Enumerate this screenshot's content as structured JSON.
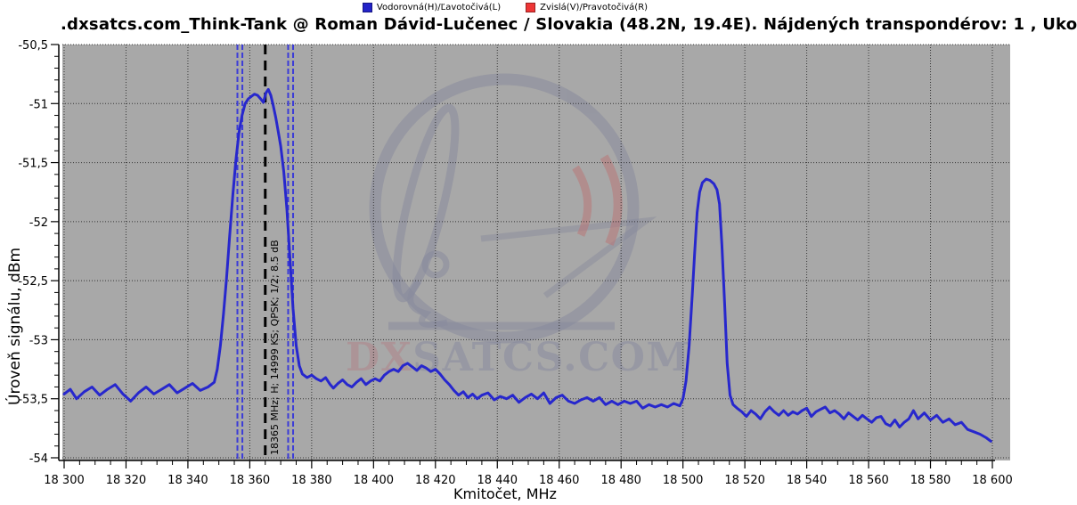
{
  "title": ".dxsatcs.com_Think-Tank @ Roman Dávid-Lučenec / Slovakia (48.2N, 19.4E). Nájdených transpondérov: 1 , Uko",
  "legend": {
    "items": [
      {
        "label": "Vodorovná(H)/Ľavotočivá(L)",
        "color": "#2323c8"
      },
      {
        "label": "Zvislá(V)/Pravotočivá(R)",
        "color": "#ee3636"
      }
    ]
  },
  "watermark": {
    "text": "DXSATCS.COM",
    "text_dx": "DX",
    "text_rest": "SATCS.COM",
    "dx_color": "rgba(186,88,98,0.55)",
    "rest_color": "rgba(100,105,148,0.55)"
  },
  "chart_data": {
    "type": "line",
    "title": ".dxsatcs.com_Think-Tank @ Roman Dávid-Lučenec / Slovakia (48.2N, 19.4E). Nájdených transpondérov: 1 , Uko",
    "xlabel": "Kmitočet, MHz",
    "ylabel": "Úroveň signálu, dBm",
    "xlim": [
      18300,
      18600
    ],
    "ylim": [
      -54,
      -50.5
    ],
    "x_major_step": 20,
    "x_minor_step": 5,
    "y_major_step": 0.5,
    "y_minor_step": 0.1,
    "grid": true,
    "plot_bg": "#a8a8a8",
    "grid_color": "#1a1a1a",
    "x_tick_values": [
      18300,
      18320,
      18340,
      18360,
      18380,
      18400,
      18420,
      18440,
      18460,
      18480,
      18500,
      18520,
      18540,
      18560,
      18580,
      18600
    ],
    "x_tick_labels": [
      "18 300",
      "18 320",
      "18 340",
      "18 360",
      "18 380",
      "18 400",
      "18 420",
      "18 440",
      "18 460",
      "18 480",
      "18 500",
      "18 520",
      "18 540",
      "18 560",
      "18 580",
      "18 600"
    ],
    "y_tick_values": [
      -50.5,
      -51,
      -51.5,
      -52,
      -52.5,
      -53,
      -53.5,
      -54
    ],
    "y_tick_labels": [
      "-50,5",
      "-51",
      "-51,5",
      "-52",
      "-52,5",
      "-53",
      "-53,5",
      "-54"
    ],
    "markers": {
      "center_line": {
        "x": 18365,
        "color": "#000000",
        "style": "dashed"
      },
      "band_edges": [
        18356,
        18357.6,
        18372.4,
        18374
      ],
      "band_color": "#3c3cd8",
      "annotation": "18365 MHz; H; 14999 KS; QPSK; 1/2; 8.5 dB"
    },
    "series": [
      {
        "name": "Vodorovná(H)/Ľavotočivá(L)",
        "color": "#2727cd",
        "points": [
          [
            18300,
            -53.46
          ],
          [
            18302,
            -53.42
          ],
          [
            18304,
            -53.5
          ],
          [
            18306.5,
            -53.44
          ],
          [
            18309,
            -53.4
          ],
          [
            18311.5,
            -53.47
          ],
          [
            18314,
            -53.42
          ],
          [
            18316.5,
            -53.38
          ],
          [
            18319,
            -53.46
          ],
          [
            18321.5,
            -53.52
          ],
          [
            18324,
            -53.45
          ],
          [
            18326.5,
            -53.4
          ],
          [
            18329,
            -53.46
          ],
          [
            18331.5,
            -53.42
          ],
          [
            18334,
            -53.38
          ],
          [
            18336.5,
            -53.45
          ],
          [
            18339,
            -53.41
          ],
          [
            18341.5,
            -53.37
          ],
          [
            18344,
            -53.43
          ],
          [
            18346.5,
            -53.4
          ],
          [
            18348.5,
            -53.36
          ],
          [
            18349.5,
            -53.25
          ],
          [
            18350.5,
            -53.05
          ],
          [
            18351.5,
            -52.78
          ],
          [
            18352.5,
            -52.48
          ],
          [
            18353.5,
            -52.12
          ],
          [
            18354.5,
            -51.78
          ],
          [
            18355.5,
            -51.48
          ],
          [
            18356.5,
            -51.25
          ],
          [
            18357.5,
            -51.1
          ],
          [
            18358.5,
            -51.0
          ],
          [
            18359.5,
            -50.96
          ],
          [
            18360.5,
            -50.94
          ],
          [
            18361.5,
            -50.92
          ],
          [
            18362.5,
            -50.93
          ],
          [
            18363.5,
            -50.96
          ],
          [
            18364.4,
            -50.99
          ],
          [
            18365.2,
            -50.91
          ],
          [
            18366,
            -50.88
          ],
          [
            18366.8,
            -50.93
          ],
          [
            18367.6,
            -51.02
          ],
          [
            18368.4,
            -51.12
          ],
          [
            18369.2,
            -51.24
          ],
          [
            18370,
            -51.36
          ],
          [
            18371,
            -51.58
          ],
          [
            18372,
            -51.9
          ],
          [
            18373,
            -52.32
          ],
          [
            18374,
            -52.74
          ],
          [
            18375,
            -53.05
          ],
          [
            18376,
            -53.22
          ],
          [
            18377,
            -53.29
          ],
          [
            18378.5,
            -53.32
          ],
          [
            18380,
            -53.3
          ],
          [
            18381.5,
            -53.33
          ],
          [
            18383,
            -53.35
          ],
          [
            18384.5,
            -53.32
          ],
          [
            18386,
            -53.38
          ],
          [
            18387,
            -53.41
          ],
          [
            18388.5,
            -53.37
          ],
          [
            18390,
            -53.34
          ],
          [
            18391.5,
            -53.38
          ],
          [
            18393,
            -53.4
          ],
          [
            18394.5,
            -53.36
          ],
          [
            18396,
            -53.33
          ],
          [
            18397.5,
            -53.38
          ],
          [
            18399,
            -53.35
          ],
          [
            18400.5,
            -53.33
          ],
          [
            18402,
            -53.35
          ],
          [
            18403.5,
            -53.3
          ],
          [
            18405,
            -53.27
          ],
          [
            18406.5,
            -53.25
          ],
          [
            18408,
            -53.27
          ],
          [
            18409.5,
            -53.22
          ],
          [
            18411,
            -53.2
          ],
          [
            18412.5,
            -53.23
          ],
          [
            18414,
            -53.26
          ],
          [
            18415.5,
            -53.22
          ],
          [
            18417,
            -53.24
          ],
          [
            18418.5,
            -53.27
          ],
          [
            18420,
            -53.25
          ],
          [
            18421.5,
            -53.29
          ],
          [
            18423,
            -53.34
          ],
          [
            18424.5,
            -53.38
          ],
          [
            18426,
            -53.43
          ],
          [
            18427.5,
            -53.47
          ],
          [
            18429,
            -53.44
          ],
          [
            18430.5,
            -53.49
          ],
          [
            18432,
            -53.46
          ],
          [
            18433.5,
            -53.5
          ],
          [
            18435,
            -53.47
          ],
          [
            18437,
            -53.45
          ],
          [
            18439,
            -53.51
          ],
          [
            18441,
            -53.48
          ],
          [
            18443,
            -53.5
          ],
          [
            18445,
            -53.47
          ],
          [
            18447,
            -53.53
          ],
          [
            18449,
            -53.49
          ],
          [
            18451,
            -53.46
          ],
          [
            18453,
            -53.5
          ],
          [
            18455,
            -53.45
          ],
          [
            18457,
            -53.54
          ],
          [
            18459,
            -53.49
          ],
          [
            18461,
            -53.47
          ],
          [
            18463,
            -53.52
          ],
          [
            18465,
            -53.54
          ],
          [
            18467,
            -53.51
          ],
          [
            18469,
            -53.49
          ],
          [
            18471,
            -53.52
          ],
          [
            18473,
            -53.49
          ],
          [
            18475,
            -53.55
          ],
          [
            18477,
            -53.52
          ],
          [
            18479,
            -53.55
          ],
          [
            18481,
            -53.52
          ],
          [
            18483,
            -53.54
          ],
          [
            18485,
            -53.52
          ],
          [
            18487,
            -53.58
          ],
          [
            18489,
            -53.55
          ],
          [
            18491,
            -53.57
          ],
          [
            18493,
            -53.55
          ],
          [
            18495,
            -53.57
          ],
          [
            18497,
            -53.54
          ],
          [
            18499,
            -53.56
          ],
          [
            18500,
            -53.5
          ],
          [
            18501,
            -53.35
          ],
          [
            18502,
            -53.05
          ],
          [
            18503,
            -52.62
          ],
          [
            18503.8,
            -52.25
          ],
          [
            18504.6,
            -51.92
          ],
          [
            18505.4,
            -51.75
          ],
          [
            18506.3,
            -51.67
          ],
          [
            18507.5,
            -51.64
          ],
          [
            18508.7,
            -51.65
          ],
          [
            18510,
            -51.68
          ],
          [
            18511,
            -51.73
          ],
          [
            18511.8,
            -51.85
          ],
          [
            18512.6,
            -52.2
          ],
          [
            18513.5,
            -52.72
          ],
          [
            18514.3,
            -53.2
          ],
          [
            18515.2,
            -53.47
          ],
          [
            18516.2,
            -53.55
          ],
          [
            18517.5,
            -53.58
          ],
          [
            18519,
            -53.61
          ],
          [
            18520.5,
            -53.65
          ],
          [
            18522,
            -53.6
          ],
          [
            18523.5,
            -53.63
          ],
          [
            18525,
            -53.67
          ],
          [
            18526.5,
            -53.61
          ],
          [
            18528,
            -53.57
          ],
          [
            18529.5,
            -53.61
          ],
          [
            18531,
            -53.64
          ],
          [
            18532.5,
            -53.6
          ],
          [
            18534,
            -53.64
          ],
          [
            18535.5,
            -53.61
          ],
          [
            18537,
            -53.63
          ],
          [
            18538.5,
            -53.6
          ],
          [
            18540,
            -53.58
          ],
          [
            18541.5,
            -53.65
          ],
          [
            18543,
            -53.61
          ],
          [
            18544.5,
            -53.59
          ],
          [
            18546,
            -53.57
          ],
          [
            18547.5,
            -53.62
          ],
          [
            18549,
            -53.6
          ],
          [
            18550.5,
            -53.63
          ],
          [
            18552,
            -53.67
          ],
          [
            18553.5,
            -53.62
          ],
          [
            18555,
            -53.65
          ],
          [
            18556.5,
            -53.68
          ],
          [
            18558,
            -53.64
          ],
          [
            18559.5,
            -53.67
          ],
          [
            18561,
            -53.7
          ],
          [
            18562.5,
            -53.66
          ],
          [
            18564,
            -53.65
          ],
          [
            18565.5,
            -53.71
          ],
          [
            18567,
            -53.73
          ],
          [
            18568.5,
            -53.68
          ],
          [
            18570,
            -53.74
          ],
          [
            18571.5,
            -53.7
          ],
          [
            18573,
            -53.67
          ],
          [
            18574.5,
            -53.6
          ],
          [
            18576,
            -53.67
          ],
          [
            18578,
            -53.62
          ],
          [
            18580,
            -53.68
          ],
          [
            18582,
            -53.64
          ],
          [
            18584,
            -53.7
          ],
          [
            18586,
            -53.67
          ],
          [
            18588,
            -53.72
          ],
          [
            18590,
            -53.7
          ],
          [
            18592,
            -53.76
          ],
          [
            18594,
            -53.78
          ],
          [
            18596,
            -53.8
          ],
          [
            18598,
            -53.83
          ],
          [
            18599.5,
            -53.86
          ]
        ]
      },
      {
        "name": "Zvislá(V)/Pravotočivá(R)",
        "color": "#ee3636",
        "points": []
      }
    ]
  }
}
